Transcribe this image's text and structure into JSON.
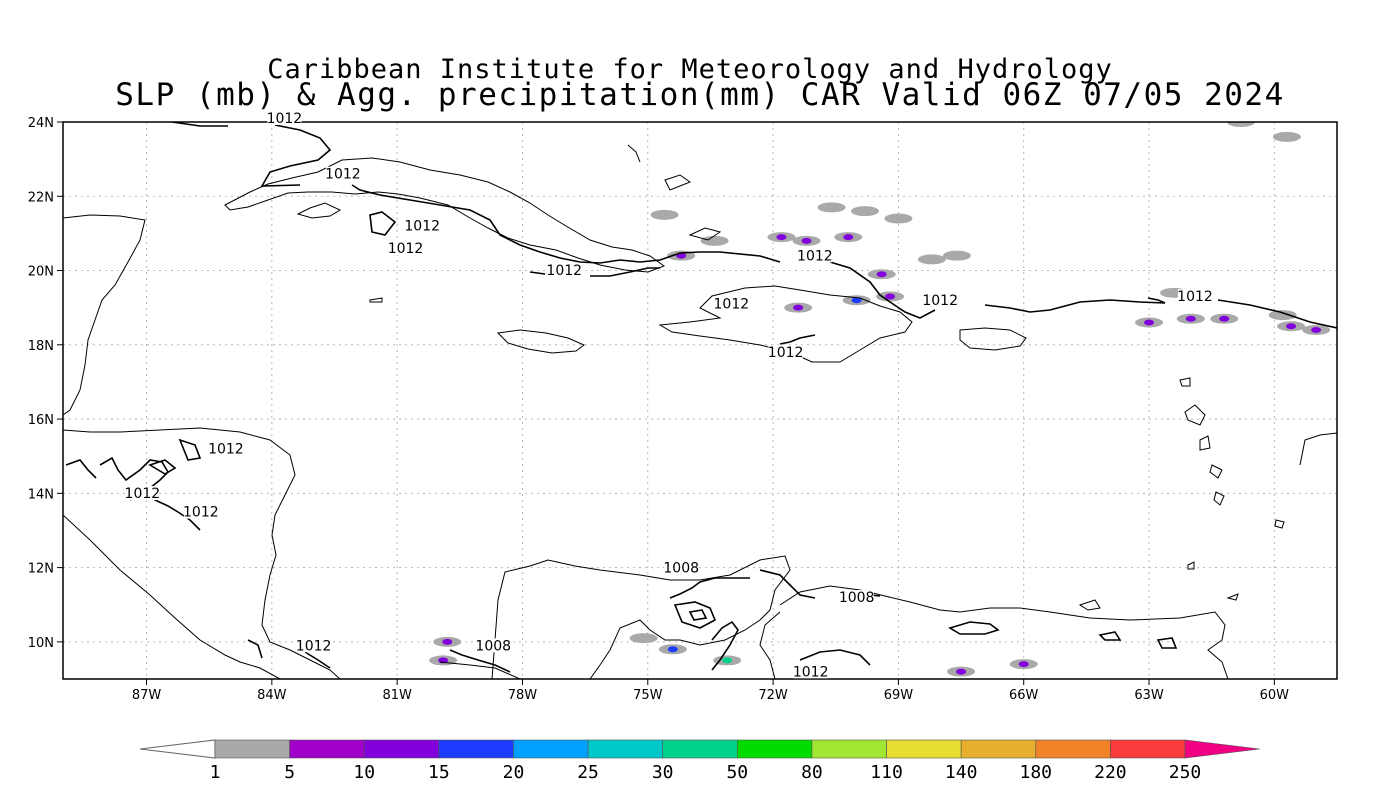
{
  "title": {
    "line1": "Caribbean Institute for Meteorology and Hydrology",
    "line2": "SLP (mb) & Agg. precipitation(mm) CAR Valid 06Z 07/05 2024"
  },
  "map": {
    "lon_range": [
      -89.0,
      -58.5
    ],
    "lat_range": [
      9.0,
      24.0
    ],
    "lon_ticks": [
      {
        "value": -87,
        "label": "87W"
      },
      {
        "value": -84,
        "label": "84W"
      },
      {
        "value": -81,
        "label": "81W"
      },
      {
        "value": -78,
        "label": "78W"
      },
      {
        "value": -75,
        "label": "75W"
      },
      {
        "value": -72,
        "label": "72W"
      },
      {
        "value": -69,
        "label": "69W"
      },
      {
        "value": -66,
        "label": "66W"
      },
      {
        "value": -63,
        "label": "63W"
      },
      {
        "value": -60,
        "label": "60W"
      }
    ],
    "lat_ticks": [
      {
        "value": 24,
        "label": "24N"
      },
      {
        "value": 22,
        "label": "22N"
      },
      {
        "value": 20,
        "label": "20N"
      },
      {
        "value": 18,
        "label": "18N"
      },
      {
        "value": 16,
        "label": "16N"
      },
      {
        "value": 14,
        "label": "14N"
      },
      {
        "value": 12,
        "label": "12N"
      },
      {
        "value": 10,
        "label": "10N"
      }
    ],
    "isobar_labels": [
      {
        "text": "1012",
        "lon": -83.7,
        "lat": 24.0
      },
      {
        "text": "1012",
        "lon": -82.3,
        "lat": 22.5
      },
      {
        "text": "1012",
        "lon": -80.4,
        "lat": 21.1
      },
      {
        "text": "1012",
        "lon": -80.8,
        "lat": 20.5
      },
      {
        "text": "1012",
        "lon": -77.0,
        "lat": 19.9
      },
      {
        "text": "1012",
        "lon": -71.0,
        "lat": 20.3
      },
      {
        "text": "1012",
        "lon": -73.0,
        "lat": 19.0
      },
      {
        "text": "1012",
        "lon": -71.7,
        "lat": 17.7
      },
      {
        "text": "1012",
        "lon": -68.0,
        "lat": 19.1
      },
      {
        "text": "1012",
        "lon": -61.9,
        "lat": 19.2
      },
      {
        "text": "1012",
        "lon": -85.1,
        "lat": 15.1
      },
      {
        "text": "1012",
        "lon": -87.1,
        "lat": 13.9
      },
      {
        "text": "1012",
        "lon": -85.7,
        "lat": 13.4
      },
      {
        "text": "1012",
        "lon": -83.0,
        "lat": 9.8
      },
      {
        "text": "1008",
        "lon": -78.7,
        "lat": 9.8
      },
      {
        "text": "1008",
        "lon": -74.2,
        "lat": 11.9
      },
      {
        "text": "1008",
        "lon": -70.0,
        "lat": 11.1
      },
      {
        "text": "1012",
        "lon": -71.1,
        "lat": 9.1
      }
    ],
    "precip_patches": [
      {
        "lon": -74.2,
        "lat": 20.4,
        "level": 2
      },
      {
        "lon": -71.4,
        "lat": 19.0,
        "level": 2
      },
      {
        "lon": -70.0,
        "lat": 19.2,
        "level": 3
      },
      {
        "lon": -69.2,
        "lat": 19.3,
        "level": 2
      },
      {
        "lon": -71.8,
        "lat": 20.9,
        "level": 2
      },
      {
        "lon": -71.2,
        "lat": 20.8,
        "level": 2
      },
      {
        "lon": -70.2,
        "lat": 20.9,
        "level": 2
      },
      {
        "lon": -69.4,
        "lat": 19.9,
        "level": 2
      },
      {
        "lon": -68.2,
        "lat": 20.3,
        "level": 1
      },
      {
        "lon": -69.8,
        "lat": 21.6,
        "level": 1
      },
      {
        "lon": -70.6,
        "lat": 21.7,
        "level": 1
      },
      {
        "lon": -69.0,
        "lat": 21.4,
        "level": 1
      },
      {
        "lon": -67.6,
        "lat": 20.4,
        "level": 1
      },
      {
        "lon": -74.6,
        "lat": 21.5,
        "level": 1
      },
      {
        "lon": -73.4,
        "lat": 20.8,
        "level": 1
      },
      {
        "lon": -62.0,
        "lat": 18.7,
        "level": 2
      },
      {
        "lon": -61.2,
        "lat": 18.7,
        "level": 2
      },
      {
        "lon": -63.0,
        "lat": 18.6,
        "level": 2
      },
      {
        "lon": -59.6,
        "lat": 18.5,
        "level": 2
      },
      {
        "lon": -59.0,
        "lat": 18.4,
        "level": 2
      },
      {
        "lon": -62.4,
        "lat": 19.4,
        "level": 1
      },
      {
        "lon": -59.8,
        "lat": 18.8,
        "level": 1
      },
      {
        "lon": -60.8,
        "lat": 24.0,
        "level": 1
      },
      {
        "lon": -59.7,
        "lat": 23.6,
        "level": 1
      },
      {
        "lon": -79.8,
        "lat": 10.0,
        "level": 2
      },
      {
        "lon": -79.9,
        "lat": 9.5,
        "level": 2
      },
      {
        "lon": -74.4,
        "lat": 9.8,
        "level": 3
      },
      {
        "lon": -73.1,
        "lat": 9.5,
        "level": 6
      },
      {
        "lon": -67.5,
        "lat": 9.2,
        "level": 2
      },
      {
        "lon": -66.0,
        "lat": 9.4,
        "level": 2
      },
      {
        "lon": -75.1,
        "lat": 10.1,
        "level": 1
      }
    ]
  },
  "colorbar": {
    "colors": [
      "#a9a9a9",
      "#a000c8",
      "#8200dc",
      "#1e3cff",
      "#00a0ff",
      "#00c8c8",
      "#00d28c",
      "#00dc00",
      "#a0e632",
      "#e6dc32",
      "#e6af2d",
      "#f08228",
      "#fa3c3c",
      "#f00082"
    ],
    "labels": [
      "1",
      "5",
      "10",
      "15",
      "20",
      "25",
      "30",
      "50",
      "80",
      "110",
      "140",
      "180",
      "220",
      "250"
    ]
  }
}
